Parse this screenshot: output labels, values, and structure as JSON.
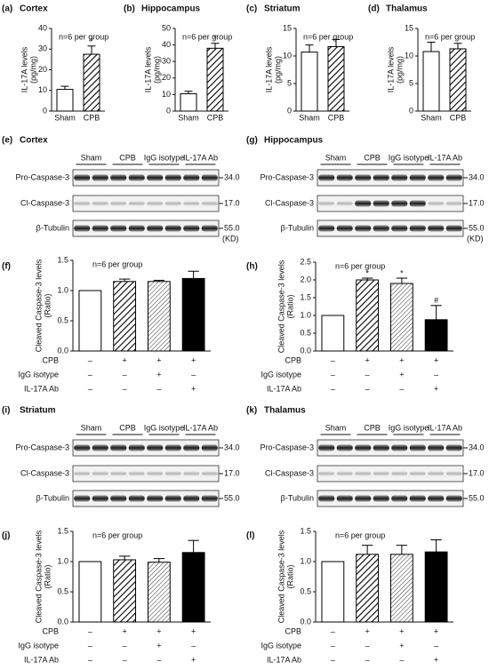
{
  "chart_data": [
    {
      "type": "bar",
      "panel": "(a)",
      "title": "Cortex",
      "ylabel": [
        "IL-17A levels",
        "(pg/mg)"
      ],
      "annotation": "n=6 per group",
      "categories": [
        "Sham",
        "CPB"
      ],
      "values": [
        10.5,
        27.5
      ],
      "errors": [
        1.5,
        4
      ],
      "markers": [
        null,
        "*"
      ],
      "patterns": [
        "none",
        "hatch"
      ],
      "color": "#000000",
      "ylim": [
        0,
        40
      ],
      "yticks": [
        0,
        10,
        20,
        30,
        40
      ]
    },
    {
      "type": "bar",
      "panel": "(b)",
      "title": "Hippocampus",
      "ylabel": [
        "IL-17A levels",
        "(pg/mg)"
      ],
      "annotation": "n=6 per group",
      "categories": [
        "Sham",
        "CPB"
      ],
      "values": [
        10.5,
        38
      ],
      "errors": [
        1.5,
        3
      ],
      "markers": [
        null,
        "*"
      ],
      "patterns": [
        "none",
        "hatch"
      ],
      "color": "#000000",
      "ylim": [
        0,
        50
      ],
      "yticks": [
        0,
        10,
        20,
        30,
        40,
        50
      ]
    },
    {
      "type": "bar",
      "panel": "(c)",
      "title": "Striatum",
      "ylabel": [
        "IL-17A levels",
        "(pg/mg)"
      ],
      "annotation": "n=6 per group",
      "categories": [
        "Sham",
        "CPB"
      ],
      "values": [
        10.7,
        11.7
      ],
      "errors": [
        1.3,
        1.3
      ],
      "patterns": [
        "none",
        "hatch"
      ],
      "color": "#000000",
      "ylim": [
        0,
        15
      ],
      "yticks": [
        0,
        5,
        10,
        15
      ]
    },
    {
      "type": "bar",
      "panel": "(d)",
      "title": "Thalamus",
      "ylabel": [
        "IL-17A levels",
        "(pg/mg)"
      ],
      "annotation": "n=6 per group",
      "categories": [
        "Sham",
        "CPB"
      ],
      "values": [
        10.8,
        11.3
      ],
      "errors": [
        1.7,
        1.0
      ],
      "patterns": [
        "none",
        "hatch"
      ],
      "color": "#000000",
      "ylim": [
        0,
        15
      ],
      "yticks": [
        0,
        5,
        10,
        15
      ]
    },
    {
      "type": "bar",
      "panel": "(f)",
      "ylabel": [
        "Cleaved Caspase-3 levels",
        "(Ratio)"
      ],
      "annotation": "n=6 per group",
      "values": [
        1.0,
        1.15,
        1.15,
        1.2
      ],
      "errors": [
        0,
        0.04,
        0.02,
        0.12
      ],
      "patterns": [
        "none",
        "hatch",
        "hatch-light",
        "solid"
      ],
      "color": "#000000",
      "ylim": [
        0,
        1.5
      ],
      "yticks": [
        {
          "value": 0,
          "label": "0.0"
        },
        {
          "value": 0.5,
          "label": "0.5"
        },
        {
          "value": 1,
          "label": "1.0"
        },
        {
          "value": 1.5,
          "label": "1.5"
        }
      ],
      "conditions": [
        {
          "label": "CPB",
          "signs": [
            "–",
            "+",
            "+",
            "+"
          ]
        },
        {
          "label": "IgG isotype",
          "signs": [
            "–",
            "–",
            "+",
            "–"
          ]
        },
        {
          "label": "IL-17A Ab",
          "signs": [
            "–",
            "–",
            "–",
            "+"
          ]
        }
      ]
    },
    {
      "type": "bar",
      "panel": "(h)",
      "ylabel": [
        "Cleaved Caspase-3 levels",
        "(Ratio)"
      ],
      "annotation": "n=6 per group",
      "values": [
        1.0,
        2.0,
        1.9,
        0.88
      ],
      "errors": [
        0,
        0.05,
        0.15,
        0.4
      ],
      "markers": [
        null,
        "*",
        "*",
        "#"
      ],
      "patterns": [
        "none",
        "hatch",
        "hatch-light",
        "solid"
      ],
      "color": "#000000",
      "ylim": [
        0,
        2.5
      ],
      "yticks": [
        {
          "value": 0,
          "label": "0.0"
        },
        {
          "value": 0.5,
          "label": "0.5"
        },
        {
          "value": 1,
          "label": "1.0"
        },
        {
          "value": 1.5,
          "label": "1.5"
        },
        {
          "value": 2,
          "label": "2.0"
        },
        {
          "value": 2.5,
          "label": "2.5"
        }
      ],
      "conditions": [
        {
          "label": "CPB",
          "signs": [
            "–",
            "+",
            "+",
            "+"
          ]
        },
        {
          "label": "IgG isotype",
          "signs": [
            "–",
            "–",
            "+",
            "–"
          ]
        },
        {
          "label": "IL-17A Ab",
          "signs": [
            "–",
            "–",
            "–",
            "+"
          ]
        }
      ]
    },
    {
      "type": "bar",
      "panel": "(j)",
      "ylabel": [
        "Cleaved Caspase-3 levels",
        "(Ratio)"
      ],
      "annotation": "n=6 per group",
      "values": [
        1.0,
        1.03,
        0.99,
        1.15
      ],
      "errors": [
        0,
        0.06,
        0.06,
        0.2
      ],
      "patterns": [
        "none",
        "hatch",
        "hatch-light",
        "solid"
      ],
      "color": "#000000",
      "ylim": [
        0,
        1.5
      ],
      "yticks": [
        {
          "value": 0,
          "label": "0.0"
        },
        {
          "value": 0.5,
          "label": "0.5"
        },
        {
          "value": 1,
          "label": "1.0"
        },
        {
          "value": 1.5,
          "label": "1.5"
        }
      ],
      "conditions": [
        {
          "label": "CPB",
          "signs": [
            "–",
            "+",
            "+",
            "+"
          ]
        },
        {
          "label": "IgG isotype",
          "signs": [
            "–",
            "–",
            "+",
            "–"
          ]
        },
        {
          "label": "IL-17A Ab",
          "signs": [
            "–",
            "–",
            "–",
            "+"
          ]
        }
      ]
    },
    {
      "type": "bar",
      "panel": "(l)",
      "ylabel": [
        "Cleaved Caspase-3 levels",
        "(Ratio)"
      ],
      "annotation": "n=6 per group",
      "values": [
        1.0,
        1.12,
        1.12,
        1.16
      ],
      "errors": [
        0,
        0.15,
        0.15,
        0.2
      ],
      "patterns": [
        "none",
        "hatch",
        "hatch-light",
        "solid"
      ],
      "color": "#000000",
      "ylim": [
        0,
        1.5
      ],
      "yticks": [
        {
          "value": 0,
          "label": "0.0"
        },
        {
          "value": 0.5,
          "label": "0.5"
        },
        {
          "value": 1,
          "label": "1.0"
        },
        {
          "value": 1.5,
          "label": "1.5"
        }
      ],
      "conditions": [
        {
          "label": "CPB",
          "signs": [
            "–",
            "+",
            "+",
            "+"
          ]
        },
        {
          "label": "IgG isotype",
          "signs": [
            "–",
            "–",
            "+",
            "–"
          ]
        },
        {
          "label": "IL-17A Ab",
          "signs": [
            "–",
            "–",
            "–",
            "+"
          ]
        }
      ]
    }
  ],
  "blots": [
    {
      "panel": "(e)",
      "title": "Cortex",
      "groups": [
        "Sham",
        "CPB",
        "IgG isotype",
        "IL-17A Ab"
      ],
      "rows": [
        "Pro-Caspase-3",
        "Cl-Caspase-3",
        "β-Tubulin"
      ],
      "mw": [
        "34.0",
        "17.0",
        "55.0"
      ],
      "unit": "(KD)"
    },
    {
      "panel": "(g)",
      "title": "Hippocampus",
      "groups": [
        "Sham",
        "CPB",
        "IgG isotype",
        "IL-17A Ab"
      ],
      "rows": [
        "Pro-Caspase-3",
        "Cl-Caspase-3",
        "β-Tubulin"
      ],
      "mw": [
        "34.0",
        "17.0",
        "55.0"
      ],
      "unit": "(KD)"
    },
    {
      "panel": "(i)",
      "title": "Striatum",
      "groups": [
        "Sham",
        "CPB",
        "IgG isotype",
        "IL-17A Ab"
      ],
      "rows": [
        "Pro-Caspase-3",
        "Cl-Caspase-3",
        "β-Tubulin"
      ],
      "mw": [
        "34.0",
        "17.0",
        "55.0"
      ],
      "unit": null
    },
    {
      "panel": "(k)",
      "title": "Thalamus",
      "groups": [
        "Sham",
        "CPB",
        "IgG isotype",
        "IL-17A Ab"
      ],
      "rows": [
        "Pro-Caspase-3",
        "Cl-Caspase-3",
        "β-Tubulin"
      ],
      "mw": [
        "34.0",
        "17.0",
        "55.0"
      ],
      "unit": null
    }
  ]
}
